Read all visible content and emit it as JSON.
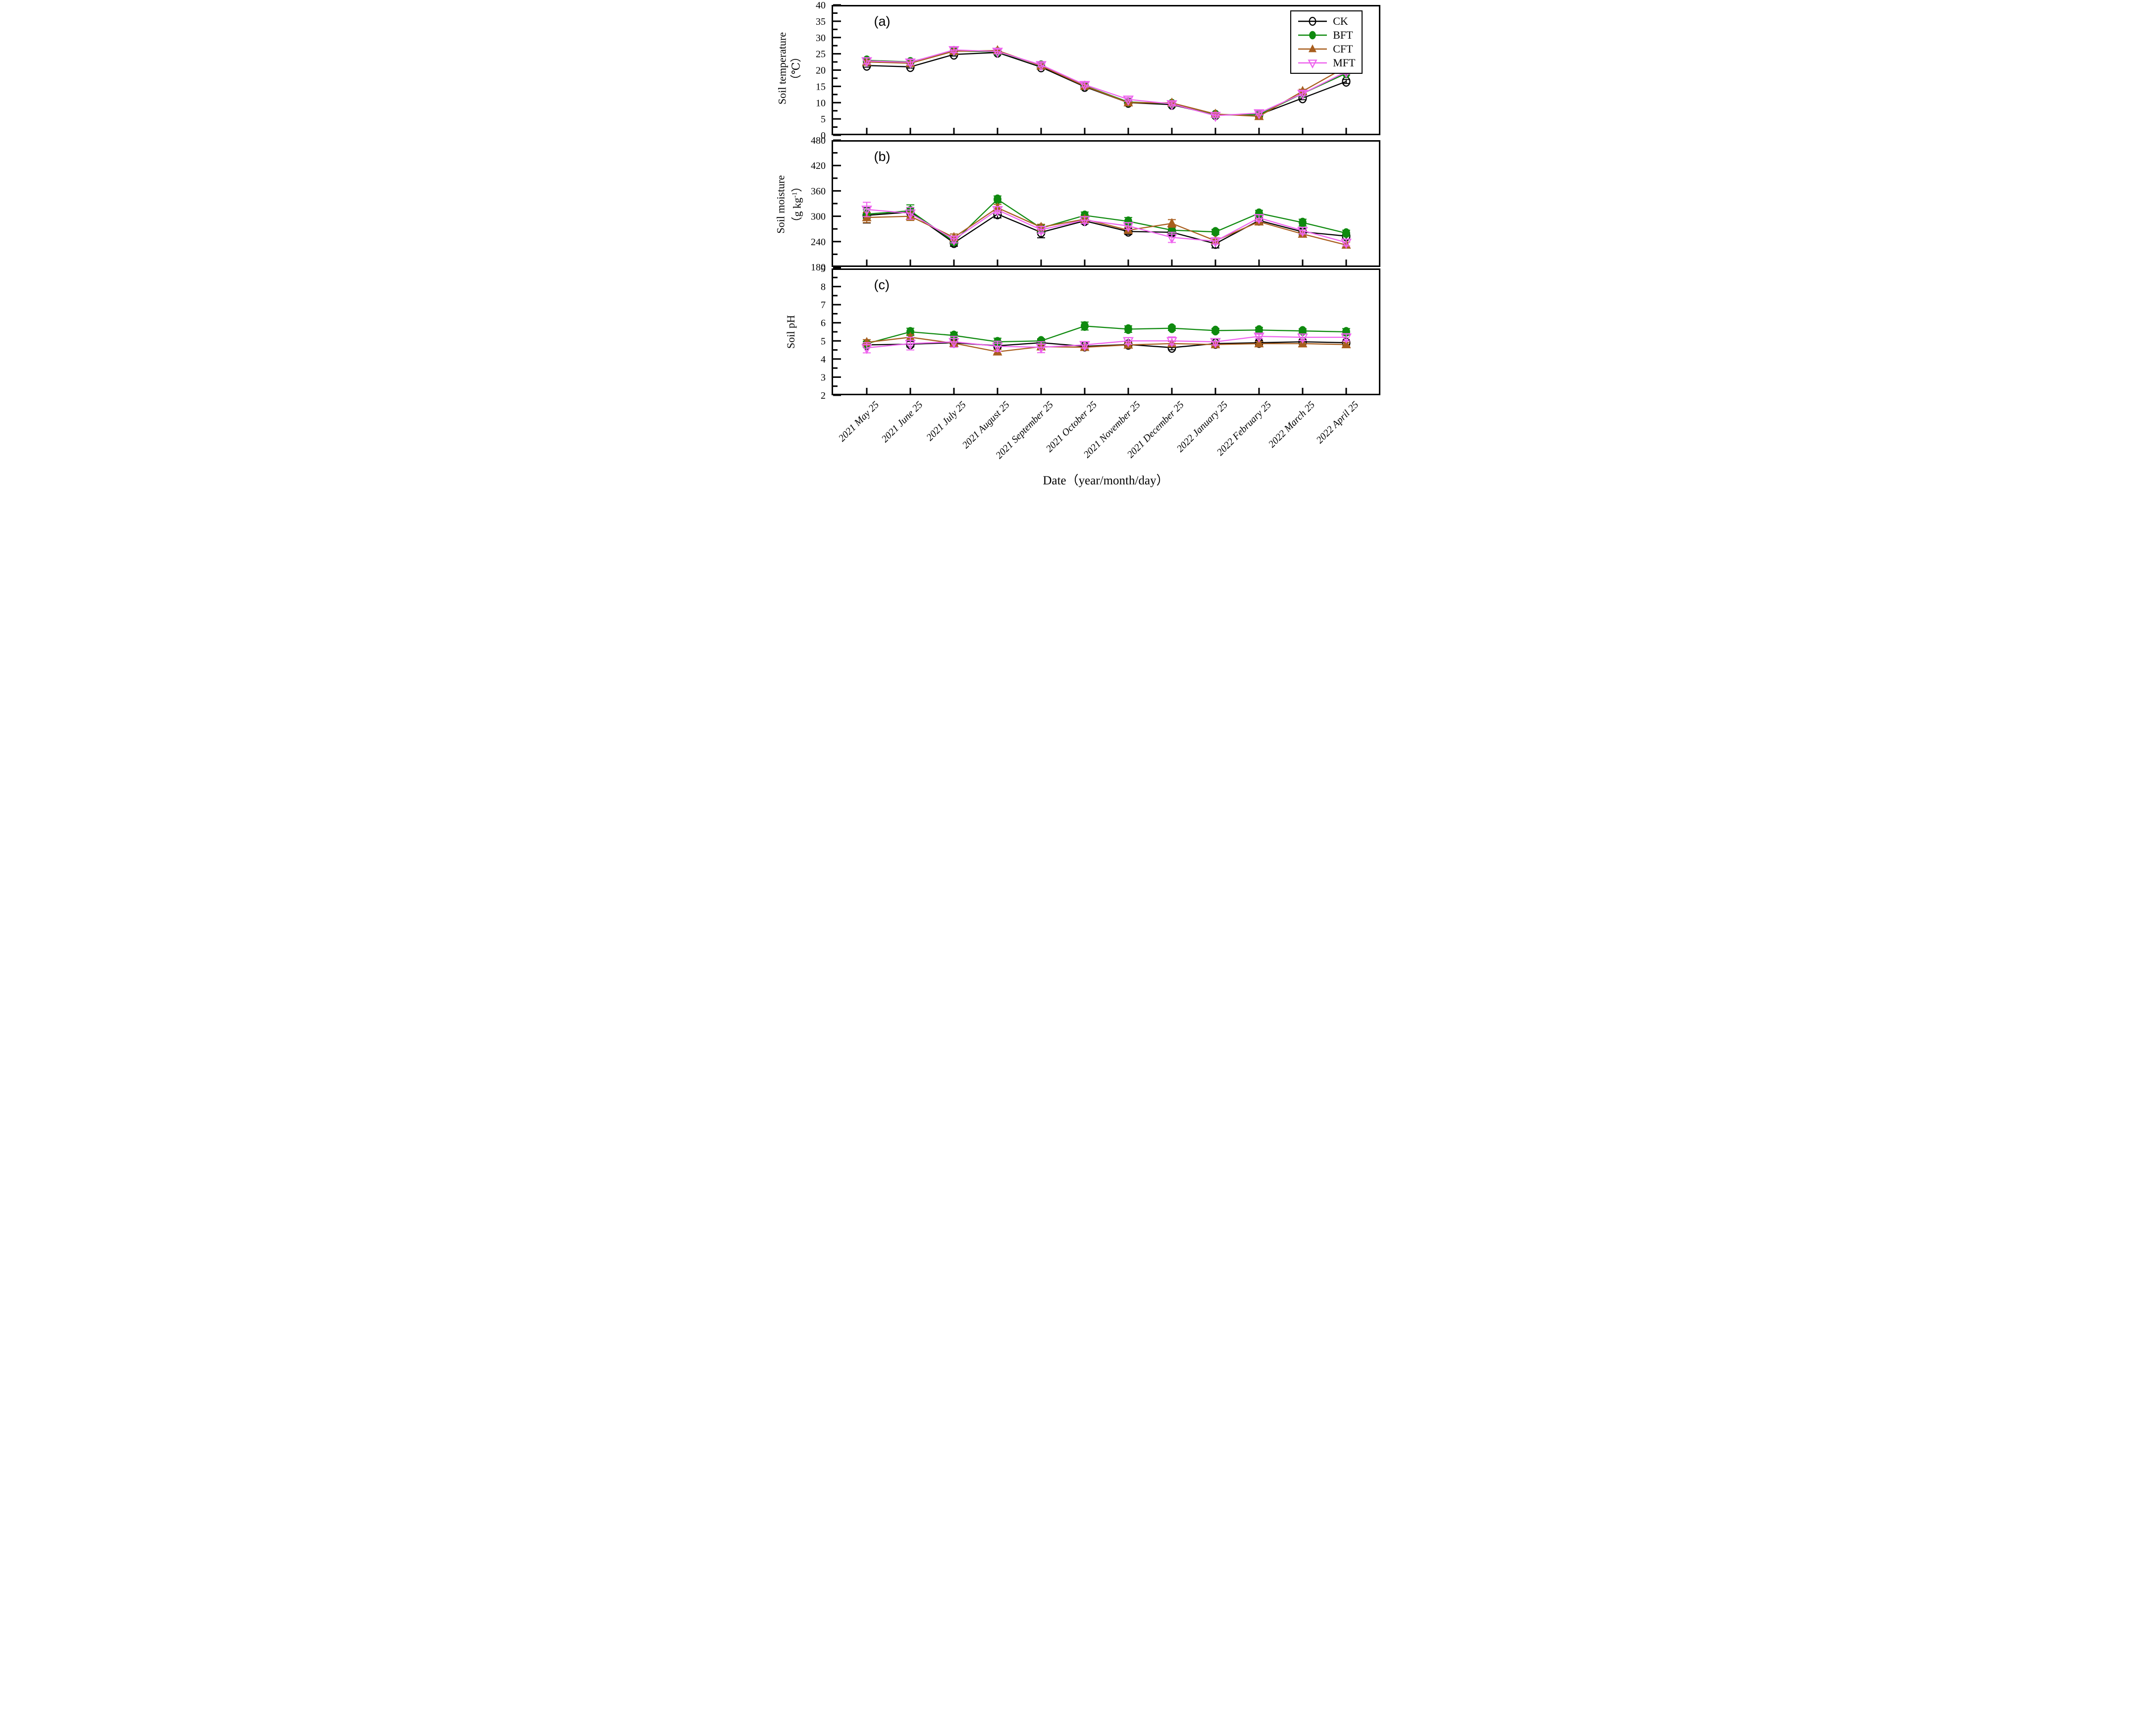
{
  "figure": {
    "x_title": "Date（year/month/day）",
    "legend": [
      "CK",
      "BFT",
      "CFT",
      "MFT"
    ],
    "panels": [
      {
        "label": "(a)",
        "y_title_lines": [
          "Soil temperature",
          "（℃）"
        ]
      },
      {
        "label": "(b)",
        "y_title_prefix": "Soil moisture",
        "unit_parts": [
          "（g kg",
          "-1",
          "）"
        ]
      },
      {
        "label": "(c)",
        "y_title_lines": [
          "Soil pH"
        ]
      }
    ]
  },
  "series_styles": [
    {
      "name": "CK",
      "color": "#000000",
      "marker": "circle-open"
    },
    {
      "name": "BFT",
      "color": "#0f8a0f",
      "marker": "circle-filled"
    },
    {
      "name": "CFT",
      "color": "#a85e1e",
      "marker": "triangle-up-filled"
    },
    {
      "name": "MFT",
      "color": "#ee63ee",
      "marker": "triangle-down-open"
    }
  ],
  "chart_data": [
    {
      "type": "line",
      "panel": "(a)",
      "ylabel": "Soil temperature (℃)",
      "ylim": [
        0,
        40
      ],
      "ytick_step": 5,
      "yminor_step": 2.5,
      "grid": false,
      "legend_position": "top-right of panel (a)",
      "categories": [
        "2021 May 25",
        "2021 June 25",
        "2021 July 25",
        "2021 August 25",
        "2021 September 25",
        "2021 October 25",
        "2021 November 25",
        "2021 December 25",
        "2022 January 25",
        "2022 February 25",
        "2022 March 25",
        "2022 April 25"
      ],
      "series": [
        {
          "name": "CK",
          "values": [
            21.4,
            21.0,
            24.8,
            25.4,
            20.9,
            14.9,
            10.0,
            9.4,
            6.2,
            6.3,
            11.4,
            16.5
          ],
          "errors": [
            0.5,
            0.4,
            0.5,
            0.4,
            0.4,
            0.5,
            0.4,
            0.4,
            0.3,
            0.4,
            0.5,
            0.6
          ]
        },
        {
          "name": "BFT",
          "values": [
            23.0,
            22.5,
            25.9,
            25.6,
            21.5,
            15.2,
            10.2,
            9.7,
            6.3,
            6.3,
            12.8,
            19.0
          ],
          "errors": [
            0.5,
            0.4,
            0.4,
            0.5,
            0.4,
            0.4,
            0.4,
            0.5,
            0.3,
            0.4,
            0.5,
            0.5
          ]
        },
        {
          "name": "CFT",
          "values": [
            22.5,
            22.1,
            25.8,
            26.0,
            21.3,
            15.1,
            10.0,
            9.9,
            6.5,
            5.8,
            13.5,
            21.0
          ],
          "errors": [
            0.6,
            0.5,
            0.5,
            0.5,
            0.5,
            0.5,
            0.4,
            0.4,
            0.4,
            0.4,
            0.6,
            0.6
          ]
        },
        {
          "name": "MFT",
          "values": [
            22.8,
            22.4,
            26.2,
            25.7,
            21.6,
            15.5,
            11.0,
            9.6,
            6.0,
            6.8,
            12.8,
            19.5
          ],
          "errors": [
            0.9,
            0.8,
            0.8,
            0.7,
            0.6,
            0.7,
            0.5,
            0.6,
            0.5,
            0.6,
            0.7,
            0.7
          ]
        }
      ]
    },
    {
      "type": "line",
      "panel": "(b)",
      "ylabel": "Soil moisture (g kg⁻¹)",
      "ylim": [
        180,
        480
      ],
      "ytick_step": 60,
      "yminor_step": 30,
      "grid": false,
      "categories": [
        "2021 May 25",
        "2021 June 25",
        "2021 July 25",
        "2021 August 25",
        "2021 September 25",
        "2021 October 25",
        "2021 November 25",
        "2021 December 25",
        "2022 January 25",
        "2022 February 25",
        "2022 March 25",
        "2022 April 25"
      ],
      "series": [
        {
          "name": "CK",
          "values": [
            302,
            310,
            237,
            305,
            262,
            289,
            264,
            262,
            235,
            290,
            263,
            253
          ],
          "errors": [
            18,
            10,
            8,
            9,
            13,
            7,
            7,
            7,
            10,
            7,
            7,
            7
          ]
        },
        {
          "name": "BFT",
          "values": [
            305,
            313,
            240,
            340,
            272,
            302,
            288,
            267,
            263,
            307,
            285,
            260
          ],
          "errors": [
            10,
            14,
            7,
            8,
            8,
            8,
            9,
            7,
            6,
            7,
            8,
            7
          ]
        },
        {
          "name": "CFT",
          "values": [
            297,
            300,
            250,
            320,
            274,
            293,
            267,
            283,
            242,
            287,
            258,
            232
          ],
          "errors": [
            12,
            10,
            8,
            8,
            7,
            7,
            7,
            9,
            7,
            7,
            7,
            7
          ]
        },
        {
          "name": "MFT",
          "values": [
            316,
            307,
            245,
            315,
            268,
            291,
            277,
            250,
            241,
            296,
            266,
            238
          ],
          "errors": [
            17,
            14,
            8,
            8,
            8,
            8,
            8,
            12,
            7,
            8,
            8,
            8
          ]
        }
      ]
    },
    {
      "type": "line",
      "panel": "(c)",
      "ylabel": "Soil pH",
      "ylim": [
        2,
        9
      ],
      "ytick_step": 1,
      "yminor_step": 0.5,
      "grid": false,
      "categories": [
        "2021 May 25",
        "2021 June 25",
        "2021 July 25",
        "2021 August 25",
        "2021 September 25",
        "2021 October 25",
        "2021 November 25",
        "2021 December 25",
        "2022 January 25",
        "2022 February 25",
        "2022 March 25",
        "2022 April 25"
      ],
      "series": [
        {
          "name": "CK",
          "values": [
            4.78,
            4.82,
            4.9,
            4.73,
            4.9,
            4.7,
            4.8,
            4.63,
            4.85,
            4.9,
            4.95,
            4.9
          ],
          "errors": [
            0.12,
            0.15,
            0.15,
            0.12,
            0.18,
            0.12,
            0.12,
            0.12,
            0.12,
            0.12,
            0.12,
            0.12
          ]
        },
        {
          "name": "BFT",
          "values": [
            4.85,
            5.5,
            5.3,
            4.95,
            5.0,
            5.82,
            5.65,
            5.7,
            5.57,
            5.6,
            5.55,
            5.5
          ],
          "errors": [
            0.12,
            0.2,
            0.18,
            0.2,
            0.12,
            0.22,
            0.18,
            0.12,
            0.12,
            0.15,
            0.12,
            0.18
          ]
        },
        {
          "name": "CFT",
          "values": [
            4.92,
            5.2,
            4.87,
            4.4,
            4.68,
            4.65,
            4.78,
            4.85,
            4.8,
            4.85,
            4.85,
            4.8
          ],
          "errors": [
            0.15,
            0.15,
            0.12,
            0.12,
            0.12,
            0.12,
            0.12,
            0.12,
            0.12,
            0.12,
            0.18,
            0.12
          ]
        },
        {
          "name": "MFT",
          "values": [
            4.62,
            4.85,
            4.95,
            4.7,
            4.65,
            4.78,
            5.0,
            5.0,
            4.95,
            5.25,
            5.2,
            5.2
          ],
          "errors": [
            0.28,
            0.35,
            0.3,
            0.28,
            0.3,
            0.18,
            0.18,
            0.22,
            0.18,
            0.12,
            0.18,
            0.2
          ]
        }
      ]
    }
  ]
}
